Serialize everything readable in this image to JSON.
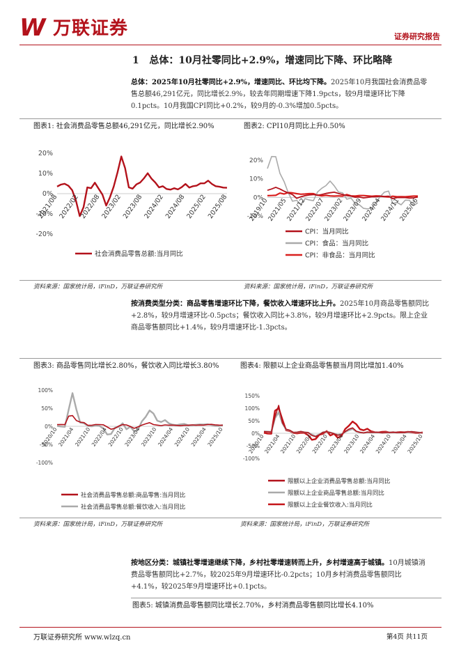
{
  "header": {
    "logo_mark": "W",
    "logo_text": "万联证券",
    "report_type": "证券研究报告"
  },
  "section": {
    "number": "1",
    "title": "总体：10月社零同比+2.9%，增速同比下降、环比略降"
  },
  "para1": {
    "lead": "总体：2025年10月社零同比+2.9%，增速同比、环比均下降。",
    "body": "2025年10月我国社会消费品零售总额46,291亿元，同比增长2.9%，较去年同期增速下降1.9pcts，较9月增速环比下降0.1pcts。10月我国CPI同比+0.2%，较9月的-0.3%增加0.5pcts。"
  },
  "fig1": {
    "title": "图表1:  社会消费品零售总额46,291亿元，同比增长2.90%",
    "source": "资料来源：国家统计局，iFinD，万联证券研究所"
  },
  "fig2": {
    "title": "图表2:  CPI10月同比上升0.50%",
    "source": "资料来源：国家统计局，iFinD，万联证券研究所"
  },
  "para2": {
    "lead": "按消费类型分类：商品零售增速环比下降，餐饮收入增速环比上升。",
    "body": "2025年10月商品零售额同比+2.8%，较9月增速环比-0.5pcts；餐饮收入同比+3.8%，较9月增速环比+2.9pcts。限上企业商品零售额同比+1.4%，较9月增速环比-1.3pcts。"
  },
  "fig3": {
    "title": "图表3:  商品零售同比增长2.80%，餐饮收入同比增长3.80%",
    "source": "资料来源：国家统计局，iFinD，万联证券研究所"
  },
  "fig4": {
    "title": "图表4:  限额以上企业商品零售额当月同比增加1.40%",
    "source": "资料来源：国家统计局，iFinD，万联证券研究所"
  },
  "para3": {
    "lead": "按地区分类：城镇社零增速继续下降，乡村社零增速转而上升，乡村增速高于城镇。",
    "body": "10月城镇消费品零售额同比+2.7%，较2025年9月增速环比-0.2pcts；10月乡村消费品零售额同比+4.1%，较2025年9月增速环比+0.1pcts。"
  },
  "fig5": {
    "title": "图表5:  城镇消费品零售额同比增长2.70%，乡村消费品零售额同比增长4.10%"
  },
  "footer": {
    "left": "万联证券研究所  www.wlzq.cn",
    "right": "第4页 共11页"
  },
  "chart_data": [
    {
      "type": "line",
      "name": "chart1",
      "x_ticks": [
        "2021/08",
        "2022/02",
        "2022/08",
        "2023/02",
        "2023/08",
        "2024/02",
        "2024/08",
        "2025/02",
        "2025/08"
      ],
      "y_ticks": [
        "20%",
        "10%",
        "0%",
        "-10%",
        "-20%"
      ],
      "ylim": [
        -20,
        20
      ],
      "legend_placement": "bottom",
      "series": [
        {
          "name": "社会消费品零售总额:当月同比",
          "color": "#b3121b",
          "values": [
            3.5,
            4.5,
            4.9,
            3.9,
            1.7,
            -3.5,
            -11.1,
            -6.7,
            3.1,
            2.7,
            5.4,
            2.5,
            -0.5,
            -5.9,
            -1.8,
            3.5,
            10.6,
            18.4,
            12.7,
            3.1,
            2.5,
            4.6,
            5.5,
            7.6,
            10.1,
            7.4,
            5.5,
            3.1,
            3.7,
            2.3,
            2.0,
            2.7,
            2.1,
            3.2,
            4.8,
            3.0,
            3.7,
            4.0,
            5.1,
            5.1,
            6.4,
            4.8,
            3.7,
            3.4,
            3.0,
            2.9
          ]
        }
      ]
    },
    {
      "type": "line",
      "name": "chart2",
      "x_ticks": [
        "2019/10",
        "2021/05",
        "2021/12",
        "2022/07",
        "2023/02",
        "2023/09",
        "2024/04",
        "2024/11",
        "2025/06"
      ],
      "y_ticks": [
        "20%",
        "10%",
        "0%",
        "-10%"
      ],
      "ylim": [
        -10,
        20
      ],
      "legend_placement": "bottom",
      "series": [
        {
          "name": "CPI：当月同比",
          "color": "#b3121b",
          "values": [
            3.8,
            4.5,
            5.4,
            4.5,
            3.3,
            2.4,
            1.5,
            -0.5,
            0.3,
            0.9,
            1.3,
            1.5,
            1.1,
            1.5,
            2.1,
            2.5,
            2.8,
            2.1,
            1.5,
            1.0,
            0.7,
            0.1,
            0.2,
            -0.3,
            0.0,
            0.3,
            0.3,
            0.6,
            0.5,
            0.6,
            -0.7,
            -0.1,
            -0.1,
            -0.1,
            -0.4,
            -0.3,
            0.2
          ]
        },
        {
          "name": "CPI：食品：当月同比",
          "color": "#aaaaaa",
          "values": [
            15.5,
            22.0,
            21.9,
            12.9,
            8.5,
            2.4,
            -2.1,
            -1.6,
            -3.7,
            -0.7,
            -1.4,
            -1.8,
            2.9,
            4.9,
            6.3,
            8.8,
            6.2,
            2.9,
            2.4,
            -1.0,
            -0.4,
            -3.2,
            -4.0,
            -5.9,
            -6.2,
            -5.7,
            -2.7,
            0.5,
            2.8,
            3.4,
            -3.3,
            -2.7,
            -4.0,
            -1.5,
            -1.6,
            -4.4,
            -2.9
          ]
        },
        {
          "name": "CPI：非食品：当月同比",
          "color": "#d9201f",
          "values": [
            0.9,
            1.0,
            1.1,
            2.3,
            1.8,
            2.6,
            2.4,
            2.0,
            1.7,
            1.8,
            2.0,
            2.0,
            1.2,
            0.8,
            1.1,
            0.8,
            0.7,
            0.8,
            0.7,
            1.5,
            0.8,
            0.7,
            1.0,
            1.0,
            0.8,
            0.6,
            0.8,
            0.7,
            0.4,
            0.2,
            0.6,
            0.3,
            0.4,
            0.3,
            0.5,
            0.7,
            0.7
          ]
        }
      ]
    },
    {
      "type": "line",
      "name": "chart3",
      "x_ticks": [
        "2020/10",
        "2021/04",
        "2021/10",
        "2022/04",
        "2022/10",
        "2023/04",
        "2023/10",
        "2024/04",
        "2024/10",
        "2025/04",
        "2025/10"
      ],
      "y_ticks": [
        "100%",
        "50%",
        "0%",
        "-50%",
        "-100%"
      ],
      "ylim": [
        -100,
        100
      ],
      "legend_placement": "bottom",
      "series": [
        {
          "name": "社会消费品零售总额:商品零售:当月同比",
          "color": "#b3121b",
          "values": [
            4.6,
            5.0,
            4.6,
            28.0,
            29.7,
            15.9,
            11.5,
            10.1,
            2.6,
            2.8,
            5.0,
            4.9,
            4.3,
            -2.0,
            -8.1,
            -5.6,
            0.8,
            4.6,
            3.8,
            -0.5,
            -5.6,
            -1.7,
            3.4,
            7.0,
            10.0,
            4.8,
            3.2,
            1.9,
            3.9,
            3.0,
            3.2,
            2.5,
            1.6,
            2.8,
            2.6,
            3.8,
            3.0,
            3.5,
            3.2,
            4.7,
            5.4,
            4.0,
            3.3,
            2.8
          ]
        },
        {
          "name": "社会消费品零售总额:餐饮收入:当月同比",
          "color": "#aaaaaa",
          "values": [
            0.8,
            -0.6,
            -1.5,
            46.0,
            91.6,
            46.4,
            10.2,
            8.3,
            1.2,
            -0.2,
            2.3,
            1.1,
            -6.6,
            -22.7,
            -21.1,
            -4.0,
            -1.5,
            8.4,
            -8.1,
            -1.0,
            -14.1,
            -9.3,
            13.9,
            26.3,
            43.8,
            35.1,
            15.4,
            12.0,
            17.1,
            8.2,
            4.5,
            3.2,
            5.4,
            6.5,
            3.0,
            3.2,
            4.3,
            5.1,
            4.8,
            5.7,
            3.9,
            1.1,
            0.9,
            3.8
          ]
        }
      ]
    },
    {
      "type": "line",
      "name": "chart4",
      "x_ticks": [
        "2020/10",
        "2021/04",
        "2021/10",
        "2022/04",
        "2022/10",
        "2023/04",
        "2023/10",
        "2024/04",
        "2024/10",
        "2025/04",
        "2025/10"
      ],
      "y_ticks": [
        "150%",
        "100%",
        "50%",
        "0%",
        "-50%",
        "-100%"
      ],
      "ylim": [
        -100,
        150
      ],
      "legend_placement": "bottom",
      "series": [
        {
          "name": "限额以上企业消费品零售总额:当月同比",
          "color": "#b3121b",
          "values": [
            6.7,
            5.9,
            4.7,
            66.0,
            111.0,
            42.6,
            16.4,
            11.9,
            3.4,
            4.2,
            7.2,
            3.9,
            2.3,
            -8.5,
            -13.7,
            -6.1,
            3.7,
            6.2,
            2.4,
            -2.0,
            -8.1,
            -5.3,
            6.8,
            16.4,
            21.8,
            8.4,
            3.7,
            1.5,
            4.7,
            3.5,
            3.8,
            3.8,
            2.0,
            3.0,
            3.2,
            4.8,
            2.6,
            3.2,
            3.1,
            5.2,
            6.4,
            4.6,
            2.7,
            1.4
          ]
        },
        {
          "name": "限额以上企业商品零售总额:当月同比",
          "color": "#aaaaaa",
          "values": [
            7.2,
            6.6,
            5.5,
            60.0,
            84.0,
            40.0,
            15.0,
            11.0,
            3.0,
            4.0,
            7.0,
            4.0,
            2.5,
            -5.0,
            -11.0,
            -4.5,
            4.0,
            6.0,
            3.0,
            -1.0,
            -6.0,
            -3.5,
            5.5,
            12.0,
            17.5,
            7.0,
            3.5,
            1.5,
            4.5,
            3.2,
            3.5,
            3.5,
            1.8,
            2.7,
            3.0,
            4.5,
            2.5,
            3.0,
            3.0,
            5.0,
            6.0,
            4.2,
            2.7,
            1.4
          ]
        },
        {
          "name": "限额以上企业餐饮收入:当月同比",
          "color": "#c41419",
          "values": [
            2.0,
            -1.0,
            -2.0,
            90.0,
            100.0,
            55.0,
            12.0,
            9.0,
            1.0,
            -0.5,
            2.0,
            1.0,
            -8.0,
            -26.0,
            -23.0,
            -6.0,
            -2.0,
            9.0,
            -9.0,
            -2.0,
            -18.0,
            -11.0,
            17.0,
            30.0,
            47.0,
            36.0,
            16.0,
            12.0,
            18.0,
            8.0,
            4.5,
            3.5,
            5.5,
            6.5,
            3.0,
            3.2,
            4.0,
            5.0,
            4.5,
            5.5,
            4.0,
            1.0,
            1.0,
            3.5
          ]
        }
      ]
    }
  ]
}
